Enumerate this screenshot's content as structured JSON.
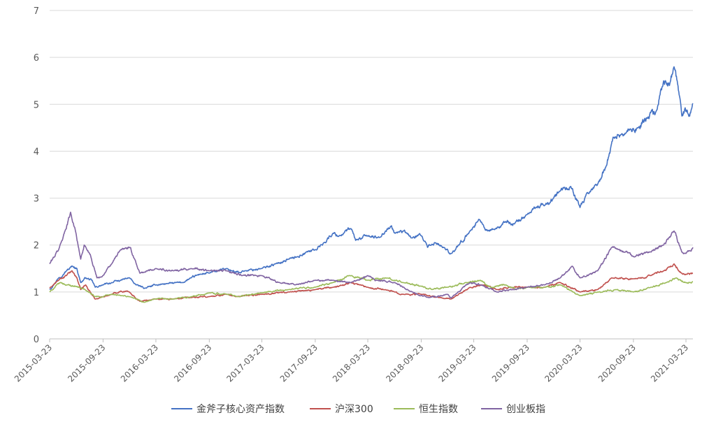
{
  "chart_data": {
    "type": "line",
    "title": "",
    "xlabel": "",
    "ylabel": "",
    "ylim": [
      0,
      7
    ],
    "yticks": [
      "0",
      "1",
      "2",
      "3",
      "4",
      "5",
      "6",
      "7"
    ],
    "xlim": [
      "2015-03-23",
      "2021-04-16"
    ],
    "xticks": [
      "2015-03-23",
      "2015-09-23",
      "2016-03-23",
      "2016-09-23",
      "2017-03-23",
      "2017-09-23",
      "2018-03-23",
      "2018-09-23",
      "2019-03-23",
      "2019-09-23",
      "2020-03-23",
      "2020-09-23",
      "2021-03-23"
    ],
    "grid": "horizontal",
    "legend": "bottom",
    "series": [
      {
        "name": "金斧子核心资产指数",
        "color": "#4472c4",
        "points": [
          [
            "2015-03-23",
            1.05
          ],
          [
            "2015-04-23",
            1.3
          ],
          [
            "2015-05-20",
            1.45
          ],
          [
            "2015-06-10",
            1.55
          ],
          [
            "2015-06-25",
            1.5
          ],
          [
            "2015-07-08",
            1.2
          ],
          [
            "2015-07-25",
            1.3
          ],
          [
            "2015-08-15",
            1.25
          ],
          [
            "2015-08-27",
            1.1
          ],
          [
            "2015-09-23",
            1.15
          ],
          [
            "2015-10-23",
            1.2
          ],
          [
            "2015-11-23",
            1.25
          ],
          [
            "2015-12-23",
            1.3
          ],
          [
            "2016-01-15",
            1.15
          ],
          [
            "2016-02-15",
            1.08
          ],
          [
            "2016-03-23",
            1.15
          ],
          [
            "2016-05-01",
            1.18
          ],
          [
            "2016-06-23",
            1.2
          ],
          [
            "2016-07-23",
            1.3
          ],
          [
            "2016-08-23",
            1.38
          ],
          [
            "2016-09-23",
            1.4
          ],
          [
            "2016-10-23",
            1.45
          ],
          [
            "2016-11-23",
            1.5
          ],
          [
            "2016-12-20",
            1.42
          ],
          [
            "2017-01-23",
            1.45
          ],
          [
            "2017-03-23",
            1.5
          ],
          [
            "2017-05-10",
            1.6
          ],
          [
            "2017-06-23",
            1.7
          ],
          [
            "2017-07-23",
            1.75
          ],
          [
            "2017-08-23",
            1.85
          ],
          [
            "2017-09-23",
            1.9
          ],
          [
            "2017-10-23",
            2.05
          ],
          [
            "2017-11-23",
            2.25
          ],
          [
            "2017-12-15",
            2.2
          ],
          [
            "2018-01-24",
            2.35
          ],
          [
            "2018-02-09",
            2.1
          ],
          [
            "2018-03-23",
            2.2
          ],
          [
            "2018-04-23",
            2.15
          ],
          [
            "2018-05-23",
            2.3
          ],
          [
            "2018-06-10",
            2.4
          ],
          [
            "2018-06-25",
            2.25
          ],
          [
            "2018-07-23",
            2.3
          ],
          [
            "2018-08-23",
            2.15
          ],
          [
            "2018-09-23",
            2.2
          ],
          [
            "2018-10-15",
            1.95
          ],
          [
            "2018-11-10",
            2.05
          ],
          [
            "2018-12-10",
            1.95
          ],
          [
            "2019-01-04",
            1.82
          ],
          [
            "2019-02-01",
            2.0
          ],
          [
            "2019-03-10",
            2.3
          ],
          [
            "2019-04-10",
            2.55
          ],
          [
            "2019-05-10",
            2.3
          ],
          [
            "2019-06-10",
            2.35
          ],
          [
            "2019-07-10",
            2.5
          ],
          [
            "2019-08-10",
            2.45
          ],
          [
            "2019-09-23",
            2.65
          ],
          [
            "2019-10-23",
            2.8
          ],
          [
            "2019-11-23",
            2.85
          ],
          [
            "2019-12-23",
            3.0
          ],
          [
            "2020-01-15",
            3.15
          ],
          [
            "2020-02-20",
            3.25
          ],
          [
            "2020-03-23",
            2.8
          ],
          [
            "2020-04-23",
            3.1
          ],
          [
            "2020-05-23",
            3.3
          ],
          [
            "2020-06-23",
            3.7
          ],
          [
            "2020-07-15",
            4.3
          ],
          [
            "2020-08-10",
            4.35
          ],
          [
            "2020-09-10",
            4.45
          ],
          [
            "2020-10-10",
            4.5
          ],
          [
            "2020-11-10",
            4.7
          ],
          [
            "2020-12-10",
            4.85
          ],
          [
            "2021-01-05",
            5.5
          ],
          [
            "2021-01-25",
            5.4
          ],
          [
            "2021-02-10",
            5.8
          ],
          [
            "2021-02-25",
            5.3
          ],
          [
            "2021-03-09",
            4.75
          ],
          [
            "2021-03-23",
            4.85
          ],
          [
            "2021-04-05",
            4.75
          ],
          [
            "2021-04-16",
            5.02
          ]
        ]
      },
      {
        "name": "沪深300",
        "color": "#c0504d",
        "points": [
          [
            "2015-03-23",
            1.08
          ],
          [
            "2015-04-23",
            1.25
          ],
          [
            "2015-05-20",
            1.35
          ],
          [
            "2015-06-08",
            1.45
          ],
          [
            "2015-06-25",
            1.3
          ],
          [
            "2015-07-08",
            1.05
          ],
          [
            "2015-07-25",
            1.15
          ],
          [
            "2015-08-26",
            0.85
          ],
          [
            "2015-09-23",
            0.9
          ],
          [
            "2015-10-23",
            0.95
          ],
          [
            "2015-11-23",
            1.02
          ],
          [
            "2015-12-23",
            1.0
          ],
          [
            "2016-01-28",
            0.8
          ],
          [
            "2016-03-23",
            0.85
          ],
          [
            "2016-05-23",
            0.85
          ],
          [
            "2016-07-23",
            0.88
          ],
          [
            "2016-09-23",
            0.9
          ],
          [
            "2016-11-23",
            0.95
          ],
          [
            "2016-12-23",
            0.9
          ],
          [
            "2017-03-23",
            0.95
          ],
          [
            "2017-06-23",
            1.0
          ],
          [
            "2017-09-23",
            1.05
          ],
          [
            "2017-11-23",
            1.1
          ],
          [
            "2018-01-24",
            1.2
          ],
          [
            "2018-03-23",
            1.1
          ],
          [
            "2018-05-23",
            1.05
          ],
          [
            "2018-07-23",
            0.95
          ],
          [
            "2018-09-23",
            0.95
          ],
          [
            "2018-11-23",
            0.88
          ],
          [
            "2019-01-04",
            0.85
          ],
          [
            "2019-03-10",
            1.1
          ],
          [
            "2019-04-20",
            1.15
          ],
          [
            "2019-06-10",
            1.05
          ],
          [
            "2019-07-23",
            1.1
          ],
          [
            "2019-09-23",
            1.1
          ],
          [
            "2019-11-23",
            1.1
          ],
          [
            "2020-01-15",
            1.2
          ],
          [
            "2020-03-23",
            1.0
          ],
          [
            "2020-05-23",
            1.05
          ],
          [
            "2020-07-10",
            1.3
          ],
          [
            "2020-09-23",
            1.28
          ],
          [
            "2020-11-23",
            1.35
          ],
          [
            "2021-01-05",
            1.45
          ],
          [
            "2021-02-10",
            1.6
          ],
          [
            "2021-03-09",
            1.4
          ],
          [
            "2021-03-23",
            1.38
          ],
          [
            "2021-04-16",
            1.4
          ]
        ]
      },
      {
        "name": "恒生指数",
        "color": "#9bbb59",
        "points": [
          [
            "2015-03-23",
            1.0
          ],
          [
            "2015-04-28",
            1.2
          ],
          [
            "2015-05-23",
            1.15
          ],
          [
            "2015-06-23",
            1.12
          ],
          [
            "2015-07-23",
            1.05
          ],
          [
            "2015-08-25",
            0.9
          ],
          [
            "2015-09-23",
            0.9
          ],
          [
            "2015-10-23",
            0.95
          ],
          [
            "2015-11-23",
            0.92
          ],
          [
            "2015-12-23",
            0.9
          ],
          [
            "2016-02-12",
            0.78
          ],
          [
            "2016-03-23",
            0.85
          ],
          [
            "2016-05-23",
            0.85
          ],
          [
            "2016-07-23",
            0.9
          ],
          [
            "2016-09-23",
            0.98
          ],
          [
            "2016-11-23",
            0.95
          ],
          [
            "2016-12-30",
            0.9
          ],
          [
            "2017-03-23",
            0.98
          ],
          [
            "2017-06-23",
            1.05
          ],
          [
            "2017-09-23",
            1.1
          ],
          [
            "2017-11-23",
            1.2
          ],
          [
            "2018-01-26",
            1.35
          ],
          [
            "2018-03-23",
            1.25
          ],
          [
            "2018-05-23",
            1.3
          ],
          [
            "2018-07-23",
            1.2
          ],
          [
            "2018-09-23",
            1.12
          ],
          [
            "2018-10-30",
            1.05
          ],
          [
            "2018-12-23",
            1.1
          ],
          [
            "2019-02-23",
            1.2
          ],
          [
            "2019-04-15",
            1.25
          ],
          [
            "2019-05-23",
            1.1
          ],
          [
            "2019-07-10",
            1.15
          ],
          [
            "2019-08-15",
            1.05
          ],
          [
            "2019-09-23",
            1.1
          ],
          [
            "2019-11-23",
            1.1
          ],
          [
            "2020-01-15",
            1.15
          ],
          [
            "2020-03-23",
            0.92
          ],
          [
            "2020-05-23",
            1.0
          ],
          [
            "2020-07-23",
            1.05
          ],
          [
            "2020-09-23",
            1.0
          ],
          [
            "2020-11-23",
            1.1
          ],
          [
            "2021-01-15",
            1.2
          ],
          [
            "2021-02-17",
            1.3
          ],
          [
            "2021-03-23",
            1.2
          ],
          [
            "2021-04-16",
            1.22
          ]
        ]
      },
      {
        "name": "创业板指",
        "color": "#8064a2",
        "points": [
          [
            "2015-03-23",
            1.6
          ],
          [
            "2015-04-23",
            1.9
          ],
          [
            "2015-05-15",
            2.3
          ],
          [
            "2015-06-03",
            2.7
          ],
          [
            "2015-06-20",
            2.3
          ],
          [
            "2015-07-08",
            1.7
          ],
          [
            "2015-07-20",
            2.0
          ],
          [
            "2015-08-10",
            1.8
          ],
          [
            "2015-09-02",
            1.3
          ],
          [
            "2015-09-23",
            1.35
          ],
          [
            "2015-10-23",
            1.6
          ],
          [
            "2015-11-23",
            1.9
          ],
          [
            "2015-12-23",
            1.95
          ],
          [
            "2016-01-10",
            1.7
          ],
          [
            "2016-01-28",
            1.4
          ],
          [
            "2016-03-23",
            1.5
          ],
          [
            "2016-05-23",
            1.45
          ],
          [
            "2016-07-23",
            1.5
          ],
          [
            "2016-09-23",
            1.45
          ],
          [
            "2016-11-23",
            1.45
          ],
          [
            "2017-01-15",
            1.35
          ],
          [
            "2017-03-23",
            1.35
          ],
          [
            "2017-05-23",
            1.2
          ],
          [
            "2017-07-15",
            1.15
          ],
          [
            "2017-09-23",
            1.25
          ],
          [
            "2017-11-23",
            1.25
          ],
          [
            "2018-01-23",
            1.2
          ],
          [
            "2018-03-23",
            1.35
          ],
          [
            "2018-04-23",
            1.25
          ],
          [
            "2018-06-23",
            1.2
          ],
          [
            "2018-08-23",
            1.0
          ],
          [
            "2018-10-19",
            0.88
          ],
          [
            "2018-12-23",
            0.95
          ],
          [
            "2019-01-04",
            0.87
          ],
          [
            "2019-03-10",
            1.2
          ],
          [
            "2019-04-15",
            1.15
          ],
          [
            "2019-06-10",
            1.0
          ],
          [
            "2019-08-10",
            1.05
          ],
          [
            "2019-09-23",
            1.1
          ],
          [
            "2019-11-23",
            1.15
          ],
          [
            "2020-01-15",
            1.3
          ],
          [
            "2020-02-25",
            1.55
          ],
          [
            "2020-03-23",
            1.3
          ],
          [
            "2020-05-23",
            1.45
          ],
          [
            "2020-07-10",
            1.95
          ],
          [
            "2020-08-23",
            1.85
          ],
          [
            "2020-09-23",
            1.75
          ],
          [
            "2020-11-23",
            1.85
          ],
          [
            "2021-01-05",
            2.0
          ],
          [
            "2021-02-10",
            2.3
          ],
          [
            "2021-03-09",
            1.85
          ],
          [
            "2021-03-23",
            1.82
          ],
          [
            "2021-04-16",
            1.95
          ]
        ]
      }
    ]
  }
}
